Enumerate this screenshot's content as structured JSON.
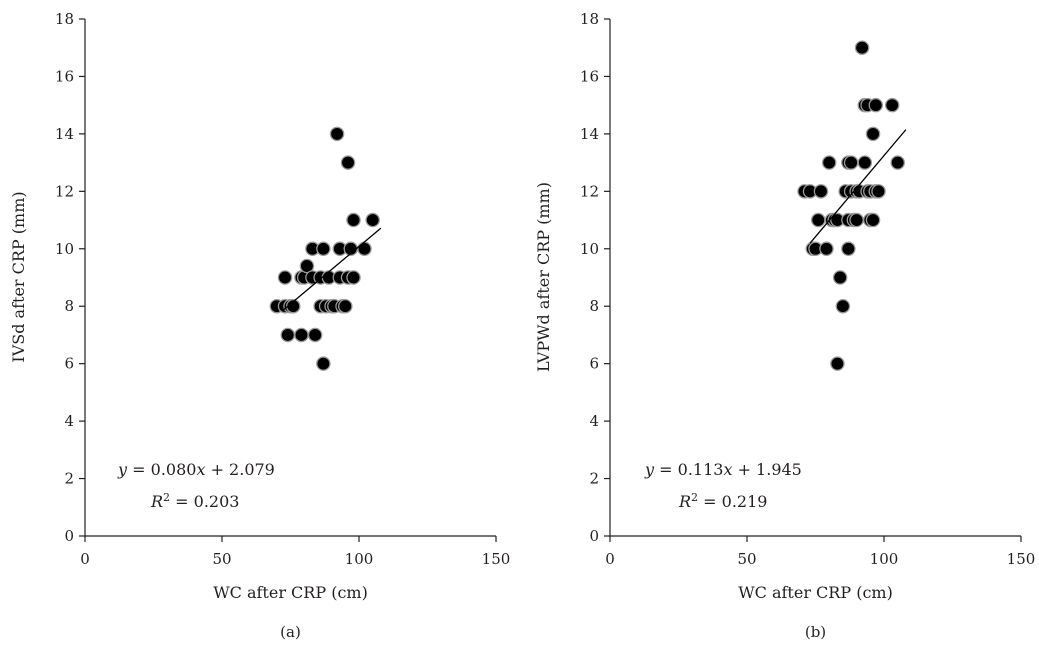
{
  "chart_data": [
    {
      "type": "scatter",
      "panel_label": "(a)",
      "title": "",
      "xlabel": "WC after CRP (cm)",
      "ylabel": "IVSd after CRP (mm)",
      "xlim": [
        0,
        150
      ],
      "ylim": [
        0,
        18
      ],
      "xticks": [
        0,
        50,
        100,
        150
      ],
      "yticks": [
        0,
        2,
        4,
        6,
        8,
        10,
        12,
        14,
        16,
        18
      ],
      "grid": false,
      "points": [
        {
          "x": 70,
          "y": 8
        },
        {
          "x": 73,
          "y": 9
        },
        {
          "x": 73,
          "y": 8
        },
        {
          "x": 74,
          "y": 7
        },
        {
          "x": 75,
          "y": 8
        },
        {
          "x": 76,
          "y": 8
        },
        {
          "x": 79,
          "y": 7
        },
        {
          "x": 79,
          "y": 9
        },
        {
          "x": 80,
          "y": 9
        },
        {
          "x": 81,
          "y": 9.4
        },
        {
          "x": 83,
          "y": 9
        },
        {
          "x": 83,
          "y": 10
        },
        {
          "x": 84,
          "y": 7
        },
        {
          "x": 86,
          "y": 8
        },
        {
          "x": 86,
          "y": 9
        },
        {
          "x": 87,
          "y": 10
        },
        {
          "x": 87,
          "y": 6
        },
        {
          "x": 88,
          "y": 8
        },
        {
          "x": 89,
          "y": 9
        },
        {
          "x": 90,
          "y": 8
        },
        {
          "x": 91,
          "y": 8
        },
        {
          "x": 92,
          "y": 14
        },
        {
          "x": 93,
          "y": 10
        },
        {
          "x": 93,
          "y": 9
        },
        {
          "x": 94,
          "y": 8
        },
        {
          "x": 95,
          "y": 8
        },
        {
          "x": 96,
          "y": 13
        },
        {
          "x": 96,
          "y": 9
        },
        {
          "x": 97,
          "y": 10
        },
        {
          "x": 98,
          "y": 11
        },
        {
          "x": 98,
          "y": 9
        },
        {
          "x": 102,
          "y": 10
        },
        {
          "x": 105,
          "y": 11
        }
      ],
      "trendline": {
        "x_range": [
          72,
          108
        ],
        "slope": 0.08,
        "intercept": 2.079
      },
      "equation": {
        "lhs": "y",
        "rhs": "= 0.080",
        "var": "x",
        "rest": "+ 2.079"
      },
      "r2": {
        "symbol": "R",
        "exp": "2",
        "value": "= 0.203"
      }
    },
    {
      "type": "scatter",
      "panel_label": "(b)",
      "title": "",
      "xlabel": "WC after CRP (cm)",
      "ylabel": "LVPWd after CRP (mm)",
      "xlim": [
        0,
        150
      ],
      "ylim": [
        0,
        18
      ],
      "xticks": [
        0,
        50,
        100,
        150
      ],
      "yticks": [
        0,
        2,
        4,
        6,
        8,
        10,
        12,
        14,
        16,
        18
      ],
      "grid": false,
      "points": [
        {
          "x": 71,
          "y": 12
        },
        {
          "x": 73,
          "y": 12
        },
        {
          "x": 74,
          "y": 10
        },
        {
          "x": 75,
          "y": 10
        },
        {
          "x": 76,
          "y": 11
        },
        {
          "x": 77,
          "y": 12
        },
        {
          "x": 79,
          "y": 10
        },
        {
          "x": 80,
          "y": 13
        },
        {
          "x": 81,
          "y": 11
        },
        {
          "x": 82,
          "y": 11
        },
        {
          "x": 83,
          "y": 11
        },
        {
          "x": 83,
          "y": 6
        },
        {
          "x": 84,
          "y": 9
        },
        {
          "x": 85,
          "y": 8
        },
        {
          "x": 86,
          "y": 12
        },
        {
          "x": 87,
          "y": 13
        },
        {
          "x": 87,
          "y": 11
        },
        {
          "x": 87,
          "y": 10
        },
        {
          "x": 88,
          "y": 13
        },
        {
          "x": 88,
          "y": 12
        },
        {
          "x": 89,
          "y": 11
        },
        {
          "x": 90,
          "y": 12
        },
        {
          "x": 90,
          "y": 11
        },
        {
          "x": 91,
          "y": 12
        },
        {
          "x": 92,
          "y": 17
        },
        {
          "x": 93,
          "y": 15
        },
        {
          "x": 93,
          "y": 13
        },
        {
          "x": 94,
          "y": 15
        },
        {
          "x": 94,
          "y": 12
        },
        {
          "x": 95,
          "y": 12
        },
        {
          "x": 95,
          "y": 11
        },
        {
          "x": 96,
          "y": 14
        },
        {
          "x": 96,
          "y": 11
        },
        {
          "x": 97,
          "y": 12
        },
        {
          "x": 97,
          "y": 15
        },
        {
          "x": 98,
          "y": 12
        },
        {
          "x": 103,
          "y": 15
        },
        {
          "x": 105,
          "y": 13
        }
      ],
      "trendline": {
        "x_range": [
          73,
          108
        ],
        "slope": 0.113,
        "intercept": 1.945
      },
      "equation": {
        "lhs": "y",
        "rhs": "= 0.113",
        "var": "x",
        "rest": "+ 1.945"
      },
      "r2": {
        "symbol": "R",
        "exp": "2",
        "value": "= 0.219"
      }
    }
  ]
}
